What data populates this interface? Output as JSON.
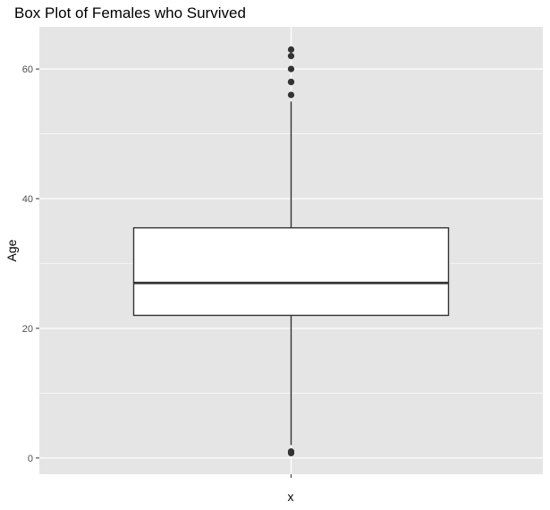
{
  "chart_data": {
    "type": "boxplot",
    "title": "Box Plot of Females who Survived",
    "xlabel": "x",
    "ylabel": "Age",
    "categories": [
      ""
    ],
    "ylim": [
      -2.5,
      66.5
    ],
    "yticks": [
      0,
      20,
      40,
      60
    ],
    "grid": true,
    "legend": "none",
    "box": {
      "lower_whisker": 2,
      "q1": 22,
      "median": 27,
      "q3": 35.5,
      "upper_whisker": 55,
      "outliers": [
        56,
        58,
        58,
        60,
        62,
        63,
        1,
        0.75
      ]
    },
    "colors": {
      "panel": "#e5e5e5",
      "grid": "#ffffff",
      "box_fill": "#ffffff",
      "box_stroke": "#333333",
      "point": "#333333"
    }
  }
}
